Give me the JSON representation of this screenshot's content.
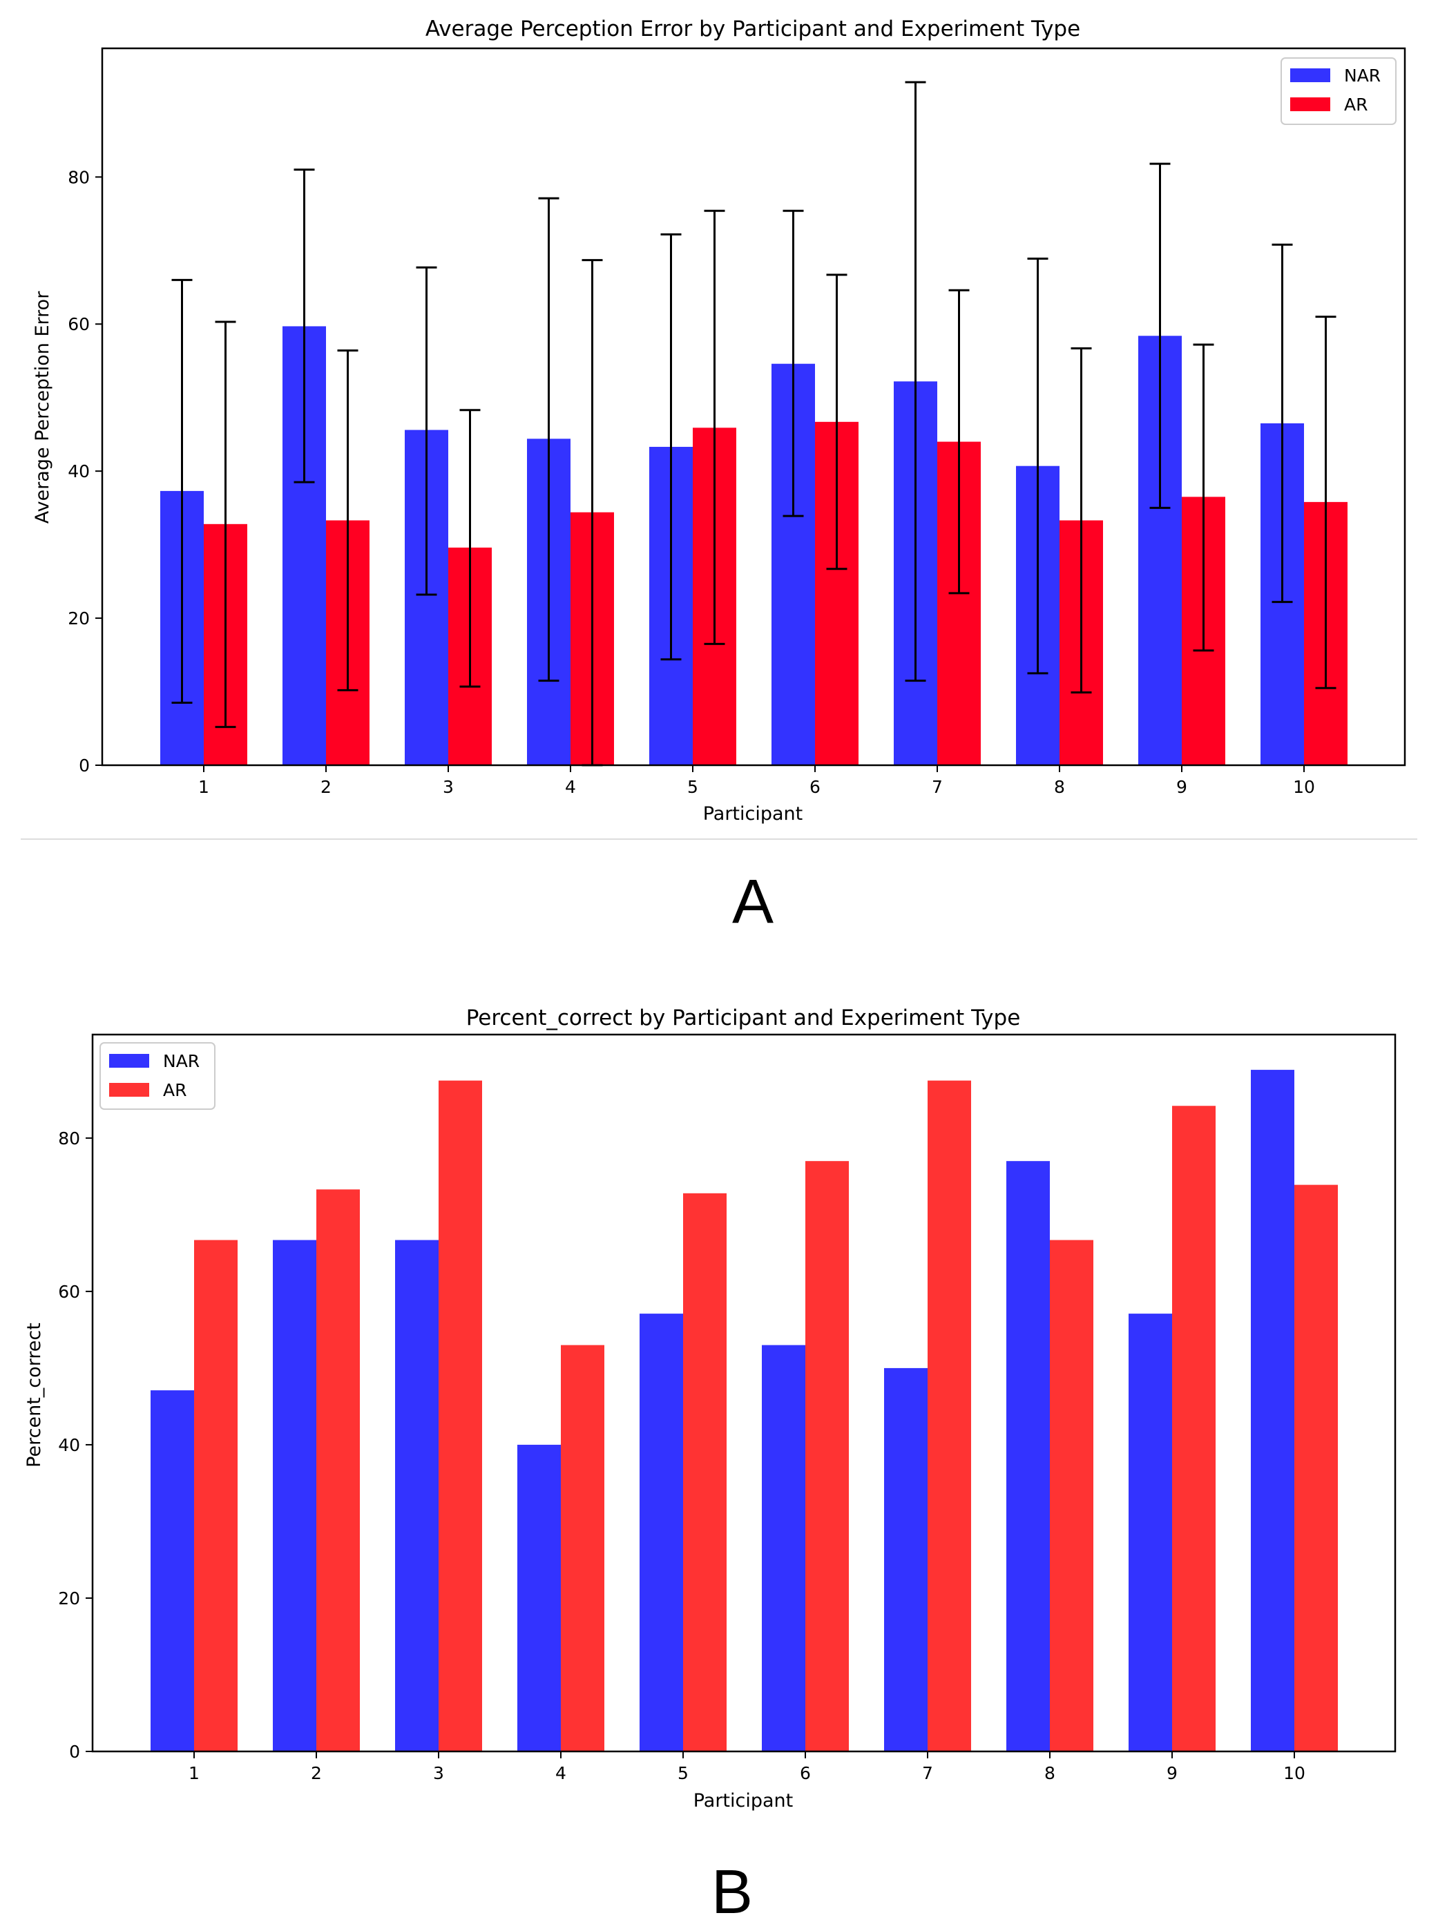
{
  "panel_a_label": "A",
  "panel_b_label": "B",
  "colors": {
    "nar_a": "#3333ff",
    "ar_a": "#ff0022",
    "nar_b": "#3333ff",
    "ar_b": "#ff3333"
  },
  "chart_data": [
    {
      "type": "bar",
      "title": "Average Perception Error by Participant and Experiment Type",
      "xlabel": "Participant",
      "ylabel": "Average Perception Error",
      "categories": [
        "1",
        "2",
        "3",
        "4",
        "5",
        "6",
        "7",
        "8",
        "9",
        "10"
      ],
      "ylim": [
        0,
        97.5
      ],
      "yticks": [
        "0",
        "20",
        "40",
        "60",
        "80"
      ],
      "legend": "top-right",
      "series": [
        {
          "name": "NAR",
          "values": [
            37.3,
            59.7,
            45.6,
            44.4,
            43.3,
            54.6,
            52.2,
            40.7,
            58.4,
            46.5
          ],
          "err_low": [
            8.5,
            38.5,
            23.2,
            11.5,
            14.4,
            33.9,
            11.5,
            12.5,
            35.0,
            22.2
          ],
          "err_high": [
            66.0,
            81.0,
            67.7,
            77.1,
            72.2,
            75.4,
            92.9,
            68.9,
            81.8,
            70.8
          ]
        },
        {
          "name": "AR",
          "values": [
            32.8,
            33.3,
            29.6,
            34.4,
            45.9,
            46.7,
            44.0,
            33.3,
            36.5,
            35.8
          ],
          "err_low": [
            5.2,
            10.2,
            10.7,
            0.0,
            16.5,
            26.7,
            23.4,
            9.9,
            15.6,
            10.5
          ],
          "err_high": [
            60.3,
            56.4,
            48.3,
            68.7,
            75.4,
            66.7,
            64.6,
            56.7,
            57.2,
            61.0
          ]
        }
      ]
    },
    {
      "type": "bar",
      "title": "Percent_correct by Participant and Experiment Type",
      "xlabel": "Participant",
      "ylabel": "Percent_correct",
      "categories": [
        "1",
        "2",
        "3",
        "4",
        "5",
        "6",
        "7",
        "8",
        "9",
        "10"
      ],
      "ylim": [
        0,
        93.5
      ],
      "yticks": [
        "0",
        "20",
        "40",
        "60",
        "80"
      ],
      "legend": "top-left",
      "series": [
        {
          "name": "NAR",
          "values": [
            47.1,
            66.7,
            66.7,
            40.0,
            57.1,
            53.0,
            50.0,
            77.0,
            57.1,
            88.9
          ]
        },
        {
          "name": "AR",
          "values": [
            66.7,
            73.3,
            87.5,
            53.0,
            72.8,
            77.0,
            87.5,
            66.7,
            84.2,
            73.9
          ]
        }
      ]
    }
  ]
}
